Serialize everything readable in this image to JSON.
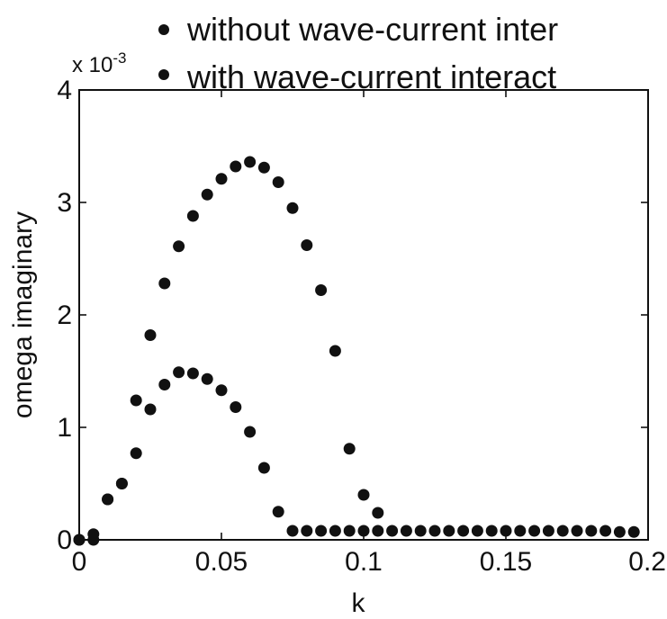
{
  "chart_data": {
    "type": "scatter",
    "title": "",
    "xlabel": "k",
    "ylabel": "omega imaginary",
    "y_multiplier_text": "x 10",
    "y_multiplier_exponent": "-3",
    "xlim": [
      0,
      0.2
    ],
    "ylim": [
      0,
      4
    ],
    "x_ticks": [
      0,
      0.05,
      0.1,
      0.15,
      0.2
    ],
    "x_tick_labels": [
      "0",
      "0.05",
      "0.1",
      "0.15",
      "0.2"
    ],
    "y_ticks": [
      0,
      1,
      2,
      3,
      4
    ],
    "y_tick_labels": [
      "0",
      "1",
      "2",
      "3",
      "4"
    ],
    "grid": false,
    "legend_position": "top",
    "marker_color": "#111111",
    "series": [
      {
        "name": "without wave-current inter",
        "x": [
          0,
          0.005,
          0.01,
          0.015,
          0.02,
          0.025,
          0.03,
          0.035,
          0.04,
          0.045,
          0.05,
          0.055,
          0.06,
          0.065,
          0.07,
          0.075,
          0.08,
          0.085,
          0.09,
          0.095,
          0.1,
          0.105,
          0.11,
          0.115,
          0.12,
          0.125,
          0.13,
          0.135,
          0.14,
          0.145,
          0.15,
          0.155,
          0.16,
          0.165,
          0.17,
          0.175,
          0.18,
          0.185,
          0.19,
          0.195
        ],
        "y": [
          0.0,
          0.0,
          0.36,
          0.5,
          0.77,
          1.16,
          1.38,
          1.49,
          1.48,
          1.43,
          1.33,
          1.18,
          0.96,
          0.64,
          0.25,
          0.08,
          0.08,
          0.08,
          0.08,
          0.08,
          0.08,
          0.08,
          0.08,
          0.08,
          0.08,
          0.08,
          0.08,
          0.08,
          0.08,
          0.08,
          0.08,
          0.08,
          0.08,
          0.08,
          0.08,
          0.08,
          0.08,
          0.08,
          0.07,
          0.07
        ]
      },
      {
        "name": "with wave-current interact",
        "x": [
          0,
          0.005,
          0.01,
          0.015,
          0.02,
          0.025,
          0.03,
          0.035,
          0.04,
          0.045,
          0.05,
          0.055,
          0.06,
          0.065,
          0.07,
          0.075,
          0.08,
          0.085,
          0.09,
          0.095,
          0.1,
          0.105
        ],
        "y": [
          0.0,
          0.05,
          0.36,
          0.5,
          1.24,
          1.82,
          2.28,
          2.61,
          2.88,
          3.07,
          3.21,
          3.32,
          3.36,
          3.31,
          3.18,
          2.95,
          2.62,
          2.22,
          1.68,
          0.81,
          0.4,
          0.24
        ]
      }
    ]
  }
}
